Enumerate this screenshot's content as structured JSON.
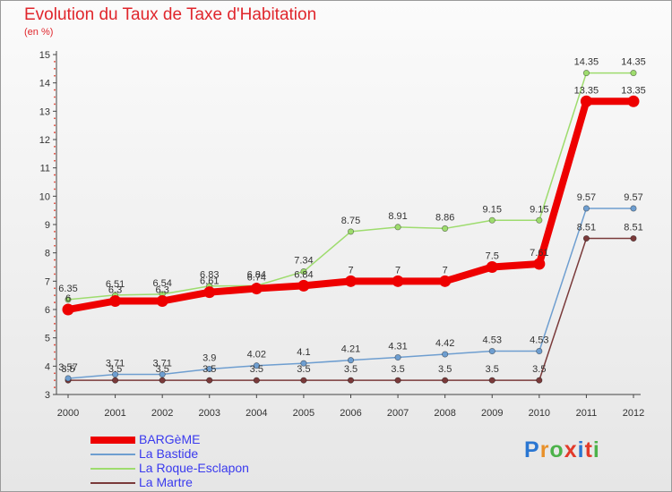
{
  "title": "Evolution du Taux de Taxe d'Habitation",
  "subtitle": "(en %)",
  "logo": {
    "text": "Proxiti",
    "letter_colors": [
      "#2a76d2",
      "#e8902a",
      "#4cb24a",
      "#e23a2a",
      "#2a76d2",
      "#e23a2a",
      "#4cb24a"
    ]
  },
  "chart_data": {
    "type": "line",
    "title": "Evolution du Taux de Taxe d'Habitation",
    "ylabel": "(en %)",
    "xlabel": "",
    "x": [
      "2000",
      "2001",
      "2002",
      "2003",
      "2004",
      "2005",
      "2006",
      "2007",
      "2008",
      "2009",
      "2010",
      "2011",
      "2012"
    ],
    "ylim": [
      3,
      15
    ],
    "yticks": [
      3,
      4,
      5,
      6,
      7,
      8,
      9,
      10,
      11,
      12,
      13,
      14,
      15
    ],
    "grid": false,
    "legend_position": "bottom-left",
    "series": [
      {
        "name": "BARGèME",
        "color": "#ee0000",
        "style": "thick",
        "values": [
          6.0,
          6.3,
          6.3,
          6.61,
          6.74,
          6.84,
          7.0,
          7.0,
          7.0,
          7.5,
          7.61,
          13.35,
          13.35
        ],
        "labels": [
          "6",
          "6.3",
          "6.3",
          "6.61",
          "6.74",
          "6.84",
          "7",
          "7",
          "7",
          "7.5",
          "7.61",
          "13.35",
          "13.35"
        ]
      },
      {
        "name": "La Bastide",
        "color": "#6e9ed0",
        "style": "thin",
        "values": [
          3.57,
          3.71,
          3.71,
          3.9,
          4.02,
          4.1,
          4.21,
          4.31,
          4.42,
          4.53,
          4.53,
          9.57,
          9.57
        ],
        "labels": [
          "3.57",
          "3.71",
          "3.71",
          "3.9",
          "4.02",
          "4.1",
          "4.21",
          "4.31",
          "4.42",
          "4.53",
          "4.53",
          "9.57",
          "9.57"
        ]
      },
      {
        "name": "La Roque-Esclapon",
        "color": "#9edc6e",
        "style": "thin",
        "values": [
          6.35,
          6.51,
          6.54,
          6.83,
          6.84,
          7.34,
          8.75,
          8.91,
          8.86,
          9.15,
          9.15,
          14.35,
          14.35
        ],
        "labels": [
          "6.35",
          "6.51",
          "6.54",
          "6.83",
          "6.84",
          "7.34",
          "8.75",
          "8.91",
          "8.86",
          "9.15",
          "9.15",
          "14.35",
          "14.35"
        ]
      },
      {
        "name": "La Martre",
        "color": "#7a3a3a",
        "style": "thin",
        "values": [
          3.5,
          3.5,
          3.5,
          3.5,
          3.5,
          3.5,
          3.5,
          3.5,
          3.5,
          3.5,
          3.5,
          8.51,
          8.51
        ],
        "labels": [
          "3.5",
          "3.5",
          "3.5",
          "3.5",
          "3.5",
          "3.5",
          "3.5",
          "3.5",
          "3.5",
          "3.5",
          "3.5",
          "8.51",
          "8.51"
        ]
      }
    ]
  }
}
